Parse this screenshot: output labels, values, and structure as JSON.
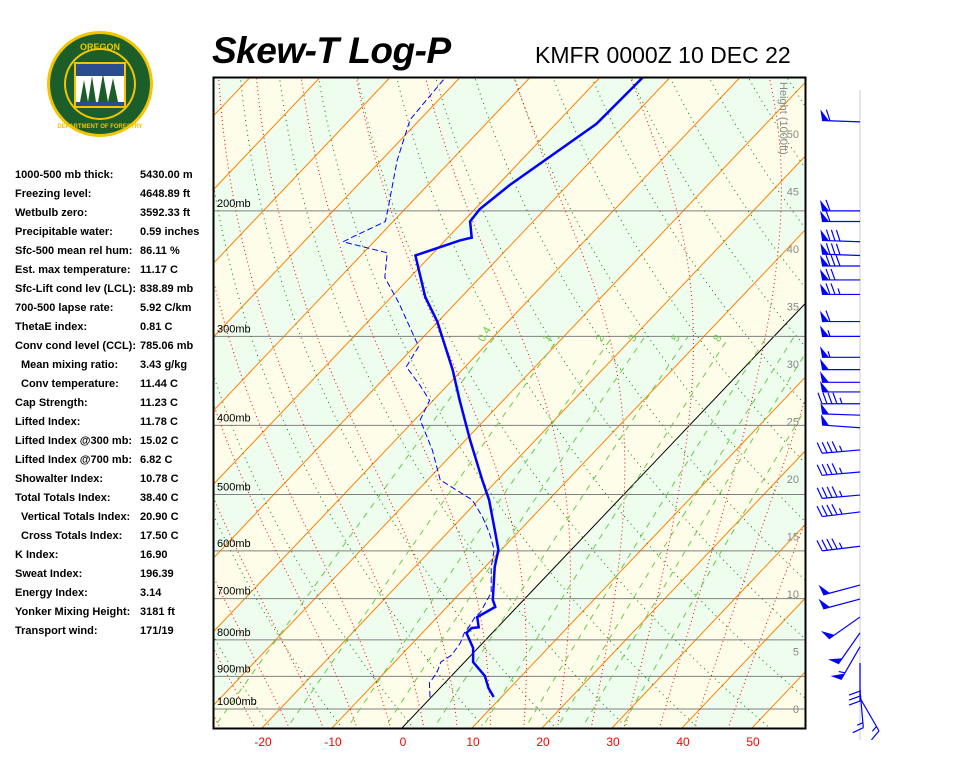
{
  "header": {
    "title": "Skew-T Log-P",
    "station": "KMFR 0000Z 10 DEC 22",
    "logo_text": [
      "OREGON",
      "DEPARTMENT OF FORESTRY"
    ]
  },
  "stats": [
    {
      "label": "1000-500 mb thick:",
      "value": "5430.00 m"
    },
    {
      "label": "Freezing level:",
      "value": "4648.89 ft"
    },
    {
      "label": "Wetbulb zero:",
      "value": "3592.33 ft"
    },
    {
      "label": "Precipitable water:",
      "value": "0.59 inches"
    },
    {
      "label": "Sfc-500 mean rel hum:",
      "value": "86.11 %"
    },
    {
      "label": "Est. max temperature:",
      "value": "11.17 C"
    },
    {
      "label": "Sfc-Lift cond lev (LCL):",
      "value": "838.89 mb"
    },
    {
      "label": "700-500 lapse rate:",
      "value": "5.92 C/km"
    },
    {
      "label": "ThetaE index:",
      "value": "0.81 C"
    },
    {
      "label": "Conv cond level (CCL):",
      "value": "785.06 mb"
    },
    {
      "label": "Mean mixing ratio:",
      "value": "3.43 g/kg",
      "indent": true
    },
    {
      "label": "Conv temperature:",
      "value": "11.44 C",
      "indent": true
    },
    {
      "label": "Cap Strength:",
      "value": "11.23 C"
    },
    {
      "label": "Lifted Index:",
      "value": "11.78 C"
    },
    {
      "label": "Lifted Index @300 mb:",
      "value": "15.02 C"
    },
    {
      "label": "Lifted Index @700 mb:",
      "value": "6.82 C"
    },
    {
      "label": "Showalter Index:",
      "value": "10.78 C"
    },
    {
      "label": "Total Totals Index:",
      "value": "38.40 C"
    },
    {
      "label": "Vertical Totals Index:",
      "value": "20.90 C",
      "indent": true
    },
    {
      "label": "Cross Totals Index:",
      "value": "17.50 C",
      "indent": true
    },
    {
      "label": "K Index:",
      "value": "16.90"
    },
    {
      "label": "Sweat Index:",
      "value": "196.39"
    },
    {
      "label": "Energy Index:",
      "value": "3.14"
    },
    {
      "label": "Yonker Mixing Height:",
      "value": "3181 ft"
    },
    {
      "label": "Transport wind:",
      "value": "171/19"
    }
  ],
  "chart_data": {
    "type": "skew-t log-p",
    "x_axis_unit": "C",
    "x_ticks": [
      -20,
      -10,
      0,
      10,
      20,
      30,
      40,
      50
    ],
    "pressure_levels": [
      200,
      300,
      400,
      500,
      600,
      700,
      800,
      900,
      1000
    ],
    "pressure_labels": [
      "200mb",
      "300mb",
      "400mb",
      "500mb",
      "600mb",
      "700mb",
      "800mb",
      "900mb",
      "1000mb"
    ],
    "pressure_range_mb": [
      130,
      1070
    ],
    "height_axis_label": "Height (1000ft)",
    "height_ticks": [
      0,
      5,
      10,
      15,
      20,
      25,
      30,
      35,
      40,
      45,
      50
    ],
    "mixing_ratio_labels": [
      "0.4",
      "1",
      "2",
      "3",
      "5",
      "8"
    ],
    "colors": {
      "temperature": "#0000ff",
      "dewpoint": "#0000ff",
      "isotherm": "#ff8000",
      "freezing_isotherm": "#000000",
      "dry_adiabat": "#008000",
      "moist_adiabat": "#ff0000",
      "mixing_ratio": "#66cc44",
      "band_a": "#effdef",
      "band_b": "#fefdea",
      "wind": "#0000ff",
      "x_tick_labels": "#ff0000"
    },
    "temperature": [
      [
        962,
        8.9
      ],
      [
        934,
        6.9
      ],
      [
        899,
        4.8
      ],
      [
        859,
        1.2
      ],
      [
        821,
        -0.7
      ],
      [
        782,
        -3.7
      ],
      [
        770,
        -3.6
      ],
      [
        768,
        -2.7
      ],
      [
        743,
        -4.3
      ],
      [
        719,
        -3.1
      ],
      [
        703,
        -4.4
      ],
      [
        632,
        -8.6
      ],
      [
        598,
        -10.4
      ],
      [
        561,
        -13.6
      ],
      [
        509,
        -18.5
      ],
      [
        477,
        -22.2
      ],
      [
        419,
        -29.4
      ],
      [
        369,
        -36.2
      ],
      [
        334,
        -41.4
      ],
      [
        297,
        -48.0
      ],
      [
        286,
        -50.1
      ],
      [
        264,
        -55.2
      ],
      [
        231,
        -62.2
      ],
      [
        220,
        -57.9
      ],
      [
        218,
        -56.6
      ],
      [
        207,
        -59.0
      ],
      [
        199,
        -59.3
      ],
      [
        184,
        -58.3
      ],
      [
        151,
        -54.2
      ],
      [
        130,
        -53.9
      ]
    ],
    "dewpoint": [
      [
        962,
        -0.2
      ],
      [
        919,
        -2.2
      ],
      [
        890,
        -2.5
      ],
      [
        859,
        -3.4
      ],
      [
        840,
        -2.8
      ],
      [
        808,
        -3.2
      ],
      [
        782,
        -4.0
      ],
      [
        770,
        -4.1
      ],
      [
        743,
        -4.6
      ],
      [
        731,
        -4.5
      ],
      [
        703,
        -5.2
      ],
      [
        687,
        -5.6
      ],
      [
        632,
        -9.1
      ],
      [
        598,
        -11.0
      ],
      [
        566,
        -14.0
      ],
      [
        538,
        -17.1
      ],
      [
        509,
        -20.9
      ],
      [
        477,
        -28.2
      ],
      [
        433,
        -33.4
      ],
      [
        393,
        -39.2
      ],
      [
        369,
        -40.5
      ],
      [
        351,
        -44.0
      ],
      [
        331,
        -48.4
      ],
      [
        310,
        -49.4
      ],
      [
        269,
        -58.2
      ],
      [
        248,
        -63.6
      ],
      [
        229,
        -66.6
      ],
      [
        221,
        -74.4
      ],
      [
        218,
        -73.8
      ],
      [
        207,
        -71.1
      ],
      [
        199,
        -72.4
      ],
      [
        170,
        -77.7
      ],
      [
        149,
        -81.4
      ],
      [
        130,
        -82.1
      ]
    ],
    "wind": [
      {
        "p": 150,
        "dir": 272,
        "spd": 60
      },
      {
        "p": 200,
        "dir": 270,
        "spd": 60
      },
      {
        "p": 207,
        "dir": 270,
        "spd": 60
      },
      {
        "p": 221,
        "dir": 272,
        "spd": 80
      },
      {
        "p": 231,
        "dir": 272,
        "spd": 80
      },
      {
        "p": 239,
        "dir": 270,
        "spd": 80
      },
      {
        "p": 250,
        "dir": 270,
        "spd": 70
      },
      {
        "p": 262,
        "dir": 270,
        "spd": 75
      },
      {
        "p": 286,
        "dir": 270,
        "spd": 60
      },
      {
        "p": 300,
        "dir": 270,
        "spd": 55
      },
      {
        "p": 321,
        "dir": 270,
        "spd": 55
      },
      {
        "p": 334,
        "dir": 270,
        "spd": 50
      },
      {
        "p": 348,
        "dir": 270,
        "spd": 50
      },
      {
        "p": 359,
        "dir": 270,
        "spd": 50
      },
      {
        "p": 373,
        "dir": 270,
        "spd": 45
      },
      {
        "p": 387,
        "dir": 272,
        "spd": 50
      },
      {
        "p": 403,
        "dir": 274,
        "spd": 50
      },
      {
        "p": 433,
        "dir": 265,
        "spd": 45
      },
      {
        "p": 465,
        "dir": 265,
        "spd": 45
      },
      {
        "p": 501,
        "dir": 265,
        "spd": 45
      },
      {
        "p": 529,
        "dir": 263,
        "spd": 45
      },
      {
        "p": 591,
        "dir": 263,
        "spd": 45
      },
      {
        "p": 670,
        "dir": 255,
        "spd": 50
      },
      {
        "p": 701,
        "dir": 255,
        "spd": 50
      },
      {
        "p": 743,
        "dir": 235,
        "spd": 50
      },
      {
        "p": 782,
        "dir": 215,
        "spd": 50
      },
      {
        "p": 818,
        "dir": 210,
        "spd": 55
      },
      {
        "p": 862,
        "dir": 180,
        "spd": 30
      },
      {
        "p": 940,
        "dir": 175,
        "spd": 15
      },
      {
        "p": 965,
        "dir": 150,
        "spd": 15
      }
    ]
  }
}
